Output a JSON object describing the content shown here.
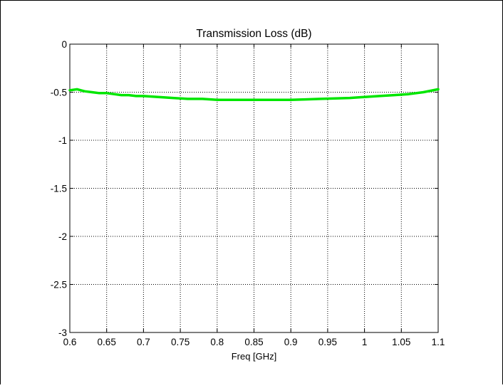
{
  "chart_data": {
    "type": "line",
    "title": "Transmission Loss (dB)",
    "xlabel": "Freq [GHz]",
    "ylabel": "",
    "xlim": [
      0.6,
      1.1
    ],
    "ylim": [
      -3,
      0
    ],
    "grid": true,
    "x_ticks": [
      0.6,
      0.65,
      0.7,
      0.75,
      0.8,
      0.85,
      0.9,
      0.95,
      1,
      1.05,
      1.1
    ],
    "x_tick_labels": [
      "0.6",
      "0.65",
      "0.7",
      "0.75",
      "0.8",
      "0.85",
      "0.9",
      "0.95",
      "1",
      "1.05",
      "1.1"
    ],
    "y_ticks": [
      0,
      -0.5,
      -1,
      -1.5,
      -2,
      -2.5,
      -3
    ],
    "y_tick_labels": [
      "0",
      "-0.5",
      "-1",
      "-1.5",
      "-2",
      "-2.5",
      "-3"
    ],
    "series": [
      {
        "color": "#00e600",
        "x": [
          0.6,
          0.61,
          0.62,
          0.63,
          0.64,
          0.65,
          0.66,
          0.67,
          0.68,
          0.69,
          0.7,
          0.72,
          0.74,
          0.76,
          0.78,
          0.8,
          0.82,
          0.84,
          0.86,
          0.88,
          0.9,
          0.92,
          0.94,
          0.96,
          0.98,
          1.0,
          1.02,
          1.04,
          1.06,
          1.08,
          1.1
        ],
        "y": [
          -0.48,
          -0.47,
          -0.49,
          -0.5,
          -0.51,
          -0.51,
          -0.52,
          -0.53,
          -0.53,
          -0.54,
          -0.54,
          -0.55,
          -0.56,
          -0.57,
          -0.57,
          -0.58,
          -0.58,
          -0.58,
          -0.58,
          -0.58,
          -0.58,
          -0.575,
          -0.57,
          -0.565,
          -0.56,
          -0.55,
          -0.54,
          -0.53,
          -0.52,
          -0.5,
          -0.47
        ]
      }
    ]
  }
}
